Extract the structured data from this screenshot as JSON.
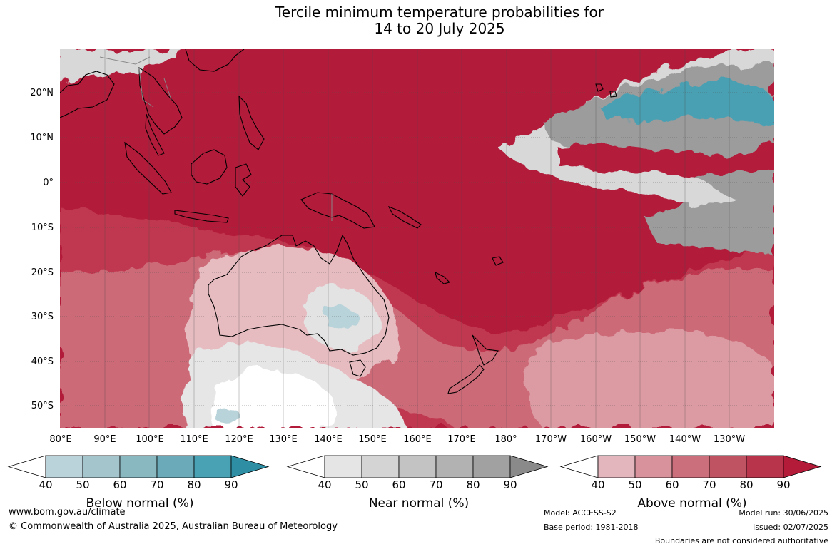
{
  "title": {
    "line1": "Tercile minimum temperature probabilities for",
    "line2": "14 to 20 July 2025"
  },
  "map": {
    "lat_labels": [
      "20°N",
      "10°N",
      "0°",
      "10°S",
      "20°S",
      "30°S",
      "40°S",
      "50°S"
    ],
    "lon_labels": [
      "80°E",
      "90°E",
      "100°E",
      "110°E",
      "120°E",
      "130°E",
      "140°E",
      "150°E",
      "160°E",
      "170°E",
      "180°",
      "170°W",
      "160°W",
      "150°W",
      "140°W",
      "130°W"
    ],
    "colors": {
      "above_90": "#b31b3a",
      "above_80": "#c0394f",
      "above_70": "#cd6a78",
      "above_60": "#dc9ba3",
      "above_50": "#e6bcc1",
      "near": "#d8d8d8",
      "near_high": "#9c9c9c",
      "below": "#4aa0b3",
      "below_low": "#b8d3da"
    }
  },
  "colorbars": [
    {
      "label": "Below normal (%)",
      "ticks": [
        "40",
        "50",
        "60",
        "70",
        "80",
        "90"
      ],
      "colors": [
        "#bad3da",
        "#a4c5cc",
        "#8ab8c1",
        "#6babb9",
        "#48a2b3",
        "#2e8ea3"
      ]
    },
    {
      "label": "Near normal (%)",
      "ticks": [
        "40",
        "50",
        "60",
        "70",
        "80",
        "90"
      ],
      "colors": [
        "#e5e5e5",
        "#d4d4d4",
        "#c3c3c3",
        "#b2b2b2",
        "#a1a1a1",
        "#8a8a8a"
      ]
    },
    {
      "label": "Above normal (%)",
      "ticks": [
        "40",
        "50",
        "60",
        "70",
        "80",
        "90"
      ],
      "colors": [
        "#e3b6bd",
        "#d7929c",
        "#ca6f7b",
        "#bf5362",
        "#b8344b",
        "#b41b39"
      ]
    }
  ],
  "footer": {
    "website": "www.bom.gov.au/climate",
    "copyright": "© Commonwealth of Australia 2025, Australian Bureau of Meteorology",
    "model": "Model: ACCESS-S2",
    "base_period": "Base period: 1981-2018",
    "model_run": "Model run: 30/06/2025",
    "issued": "Issued: 02/07/2025",
    "disclaimer": "Boundaries are not considered authoritative"
  }
}
